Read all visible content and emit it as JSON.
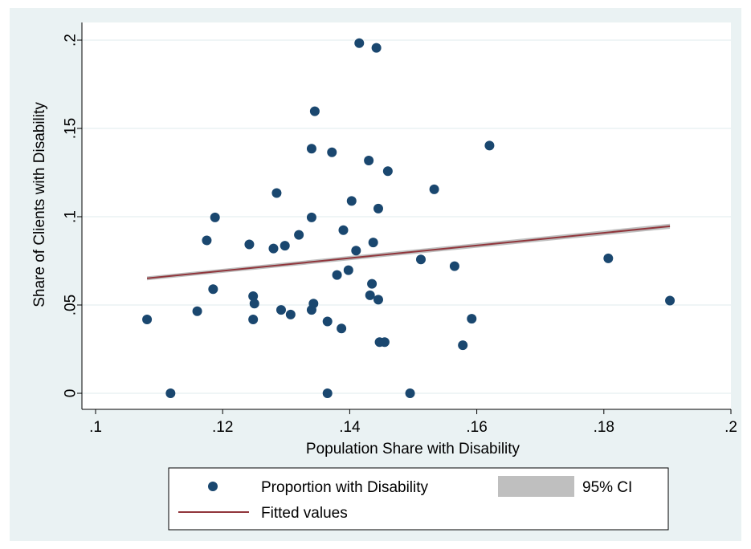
{
  "colors": {
    "frame_background": "#eaf2f3",
    "plot_background": "#ffffff",
    "grid": "#eaf2f3",
    "points": "#1a476f",
    "fit_line": "#90353b",
    "ci_band": "#bfbfbf"
  },
  "chart_data": {
    "type": "scatter",
    "xlabel": "Population Share with Disability",
    "ylabel": "Share of Clients with Disability",
    "xlim": [
      0.1,
      0.2
    ],
    "ylim": [
      0,
      0.2
    ],
    "x_ticks": [
      0.1,
      0.12,
      0.14,
      0.16,
      0.18,
      0.2
    ],
    "x_tick_labels": [
      ".1",
      ".12",
      ".14",
      ".16",
      ".18",
      ".2"
    ],
    "y_ticks": [
      0,
      0.05,
      0.1,
      0.15,
      0.2
    ],
    "y_tick_labels": [
      "0",
      ".05",
      ".1",
      ".15",
      ".2"
    ],
    "grid": "horizontal",
    "legend_position": "bottom",
    "series": [
      {
        "name": "Proportion with Disability",
        "type": "scatter",
        "points": [
          [
            0.1081,
            0.0418
          ],
          [
            0.1118,
            0.0
          ],
          [
            0.116,
            0.0465
          ],
          [
            0.1175,
            0.0866
          ],
          [
            0.1185,
            0.059
          ],
          [
            0.1188,
            0.0996
          ],
          [
            0.1242,
            0.0843
          ],
          [
            0.1248,
            0.055
          ],
          [
            0.1248,
            0.0418
          ],
          [
            0.125,
            0.0508
          ],
          [
            0.128,
            0.082
          ],
          [
            0.1285,
            0.1134
          ],
          [
            0.1292,
            0.0472
          ],
          [
            0.1298,
            0.0836
          ],
          [
            0.1307,
            0.0446
          ],
          [
            0.132,
            0.0897
          ],
          [
            0.134,
            0.0996
          ],
          [
            0.134,
            0.1385
          ],
          [
            0.134,
            0.0472
          ],
          [
            0.1343,
            0.0508
          ],
          [
            0.1345,
            0.1597
          ],
          [
            0.1365,
            0.0
          ],
          [
            0.1365,
            0.0407
          ],
          [
            0.1372,
            0.1365
          ],
          [
            0.138,
            0.067
          ],
          [
            0.1387,
            0.0367
          ],
          [
            0.139,
            0.0924
          ],
          [
            0.1398,
            0.0697
          ],
          [
            0.1403,
            0.1089
          ],
          [
            0.141,
            0.0808
          ],
          [
            0.1415,
            0.1983
          ],
          [
            0.143,
            0.1318
          ],
          [
            0.1432,
            0.0555
          ],
          [
            0.1435,
            0.062
          ],
          [
            0.1437,
            0.0854
          ],
          [
            0.1442,
            0.1956
          ],
          [
            0.1445,
            0.053
          ],
          [
            0.1445,
            0.1046
          ],
          [
            0.1447,
            0.029
          ],
          [
            0.1455,
            0.029
          ],
          [
            0.146,
            0.1258
          ],
          [
            0.1495,
            0.0
          ],
          [
            0.1512,
            0.0758
          ],
          [
            0.1533,
            0.1155
          ],
          [
            0.1565,
            0.072
          ],
          [
            0.1578,
            0.0272
          ],
          [
            0.1592,
            0.0422
          ],
          [
            0.162,
            0.1403
          ],
          [
            0.1807,
            0.0764
          ],
          [
            0.1904,
            0.0525
          ]
        ]
      },
      {
        "name": "Fitted values",
        "type": "line",
        "points": [
          [
            0.1081,
            0.0651
          ],
          [
            0.1904,
            0.0946
          ]
        ]
      },
      {
        "name": "95% CI",
        "type": "area",
        "lower": [
          [
            0.1081,
            0.064
          ],
          [
            0.1904,
            0.0932
          ]
        ],
        "upper": [
          [
            0.1081,
            0.0662
          ],
          [
            0.1904,
            0.096
          ]
        ]
      }
    ]
  }
}
